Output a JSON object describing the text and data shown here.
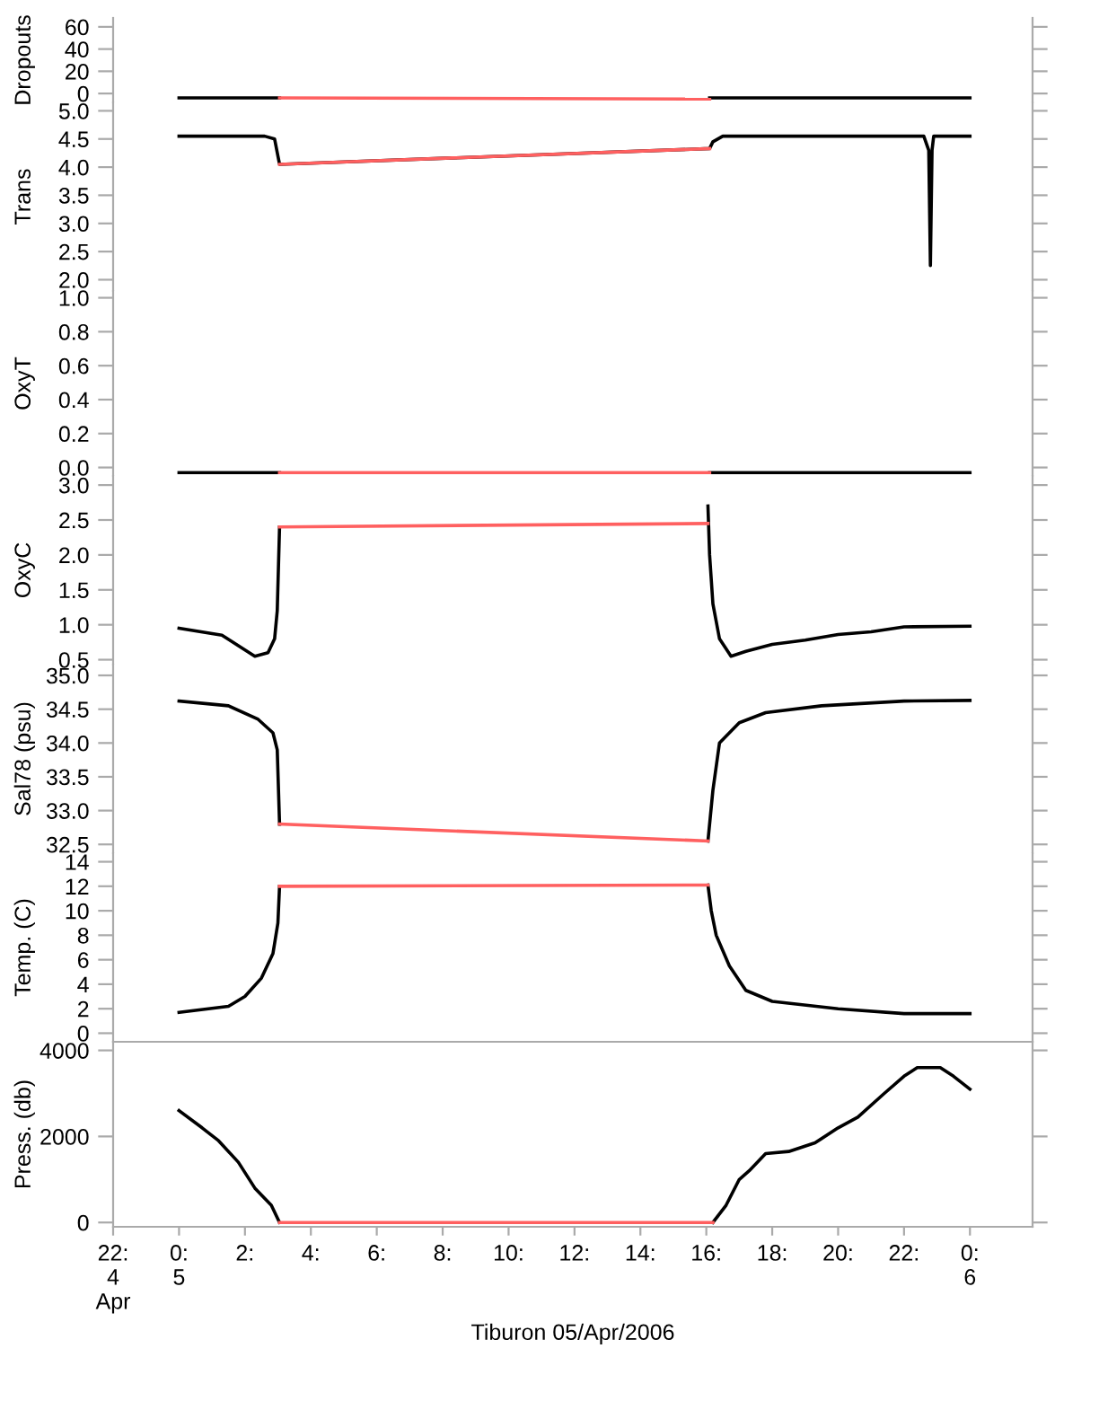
{
  "chart_data": [
    {
      "type": "line",
      "ylabel": "Dropouts",
      "xlim": [
        -2,
        25.9
      ],
      "ylim": [
        -8,
        68
      ],
      "yticks": [
        0,
        20,
        40,
        60
      ],
      "tick_labels": "y",
      "series": [
        {
          "color": "#000000",
          "x": [
            0,
            3.05,
            null,
            16.1,
            24
          ],
          "values": [
            -4,
            -4,
            null,
            -4,
            -4
          ]
        },
        {
          "color": "#ff6060",
          "x": [
            3.05,
            16.1
          ],
          "values": [
            -4,
            -5
          ]
        }
      ]
    },
    {
      "type": "line",
      "ylabel": "Trans",
      "xlim": [
        -2,
        25.9
      ],
      "ylim": [
        1.8,
        5.15
      ],
      "yticks": [
        {
          "value": 2.0,
          "label": "2.0"
        },
        2.5,
        {
          "value": 3.0,
          "label": "3.0"
        },
        3.5,
        {
          "value": 4.0,
          "label": "4.0"
        },
        4.5,
        {
          "value": 5.0,
          "label": "5.0"
        }
      ],
      "tick_labels": "y",
      "series": [
        {
          "color": "#000000",
          "x": [
            0,
            2.6,
            2.9,
            3.0,
            3.05,
            16.1,
            16.2,
            16.5,
            22.6,
            22.75,
            22.8,
            22.85,
            22.9,
            24
          ],
          "values": [
            4.55,
            4.55,
            4.5,
            4.2,
            4.05,
            4.33,
            4.45,
            4.55,
            4.55,
            4.3,
            2.25,
            4.3,
            4.55,
            4.55
          ]
        },
        {
          "color": "#ff6060",
          "x": [
            3.05,
            16.1
          ],
          "values": [
            4.05,
            4.33
          ]
        }
      ]
    },
    {
      "type": "line",
      "ylabel": "OxyT",
      "xlim": [
        -2,
        25.9
      ],
      "ylim": [
        -0.05,
        1.04
      ],
      "yticks": [
        {
          "value": 0,
          "label": "0.0"
        },
        0.2,
        0.4,
        0.6,
        0.8,
        {
          "value": 1,
          "label": "1.0"
        }
      ],
      "tick_labels": "y",
      "series": [
        {
          "color": "#000000",
          "x": [
            0,
            3.05,
            null,
            16.1,
            24
          ],
          "values": [
            -0.03,
            -0.03,
            null,
            -0.03,
            -0.03
          ]
        },
        {
          "color": "#ff6060",
          "x": [
            3.05,
            16.1
          ],
          "values": [
            -0.03,
            -0.03
          ]
        }
      ]
    },
    {
      "type": "line",
      "ylabel": "OxyC",
      "xlim": [
        -2,
        25.9
      ],
      "ylim": [
        0.43,
        3.13
      ],
      "yticks": [
        0.5,
        {
          "value": 1.0,
          "label": "1.0"
        },
        1.5,
        {
          "value": 2.0,
          "label": "2.0"
        },
        2.5,
        {
          "value": 3.0,
          "label": "3.0"
        }
      ],
      "tick_labels": "y",
      "series": [
        {
          "color": "#000000",
          "x": [
            0,
            1.3,
            2.3,
            2.7,
            2.9,
            2.98,
            3.05,
            null,
            16.05,
            16.1,
            16.2,
            16.4,
            16.75,
            17.2,
            18,
            19,
            20,
            21,
            22,
            24
          ],
          "values": [
            0.95,
            0.85,
            0.55,
            0.6,
            0.8,
            1.2,
            2.4,
            null,
            2.7,
            2.0,
            1.3,
            0.8,
            0.55,
            0.62,
            0.72,
            0.78,
            0.86,
            0.9,
            0.97,
            0.98
          ]
        },
        {
          "color": "#ff6060",
          "x": [
            3.05,
            16.05
          ],
          "values": [
            2.4,
            2.45
          ]
        }
      ]
    },
    {
      "type": "line",
      "ylabel": "Sal78 (psu)",
      "xlim": [
        -2,
        25.9
      ],
      "ylim": [
        32.37,
        35.16
      ],
      "yticks": [
        32.5,
        {
          "value": 33.0,
          "label": "33.0"
        },
        33.5,
        {
          "value": 34.0,
          "label": "34.0"
        },
        34.5,
        {
          "value": 35.0,
          "label": "35.0"
        }
      ],
      "tick_labels": "y",
      "series": [
        {
          "color": "#000000",
          "x": [
            0,
            1.5,
            2.4,
            2.85,
            2.98,
            3.05,
            null,
            16.05,
            16.2,
            16.4,
            17,
            17.8,
            19.5,
            22,
            24
          ],
          "values": [
            34.62,
            34.55,
            34.35,
            34.15,
            33.9,
            32.8,
            null,
            32.55,
            33.3,
            34.0,
            34.3,
            34.45,
            34.55,
            34.62,
            34.63
          ]
        },
        {
          "color": "#ff6060",
          "x": [
            3.05,
            16.05
          ],
          "values": [
            32.8,
            32.55
          ]
        }
      ]
    },
    {
      "type": "line",
      "ylabel": "Temp. (C)",
      "xlim": [
        -2,
        25.9
      ],
      "ylim": [
        -0.7,
        14.7
      ],
      "yticks": [
        0,
        2,
        4,
        6,
        8,
        10,
        12,
        14
      ],
      "tick_labels": "y",
      "series": [
        {
          "color": "#000000",
          "x": [
            0,
            1.5,
            2.0,
            2.5,
            2.85,
            3.0,
            3.05,
            null,
            16.05,
            16.15,
            16.3,
            16.7,
            17.2,
            18,
            20,
            22,
            24
          ],
          "values": [
            1.7,
            2.2,
            3.0,
            4.5,
            6.5,
            9,
            12,
            null,
            12.1,
            10,
            8,
            5.5,
            3.5,
            2.6,
            2.0,
            1.6,
            1.6
          ]
        },
        {
          "color": "#ff6060",
          "x": [
            3.05,
            16.05
          ],
          "values": [
            12,
            12.1
          ]
        }
      ]
    },
    {
      "type": "line",
      "ylabel": "Press. (db)",
      "xlabel": "Tiburon 05/Apr/2006",
      "xlim": [
        -2,
        25.9
      ],
      "ylim": [
        -100,
        4200
      ],
      "yticks": [
        0,
        2000,
        4000
      ],
      "xticks": [
        {
          "value": -2,
          "label": "22:\n4\nApr"
        },
        {
          "value": 0,
          "label": "0:\n5"
        },
        {
          "value": 2,
          "label": "2:"
        },
        {
          "value": 4,
          "label": "4:"
        },
        {
          "value": 6,
          "label": "6:"
        },
        {
          "value": 8,
          "label": "8:"
        },
        {
          "value": 10,
          "label": "10:"
        },
        {
          "value": 12,
          "label": "12:"
        },
        {
          "value": 14,
          "label": "14:"
        },
        {
          "value": 16,
          "label": "16:"
        },
        {
          "value": 18,
          "label": "18:"
        },
        {
          "value": 20,
          "label": "20:"
        },
        {
          "value": 22,
          "label": "22:"
        },
        {
          "value": 24,
          "label": "0:\n6"
        }
      ],
      "series": [
        {
          "color": "#000000",
          "x": [
            0,
            0.7,
            1.2,
            1.8,
            2.3,
            2.8,
            3.05,
            null,
            16.2,
            16.6,
            17.0,
            17.3,
            17.8,
            18.5,
            19.3,
            20.0,
            20.6,
            21.4,
            22.0,
            22.4,
            23.1,
            23.5,
            24.0
          ],
          "values": [
            2600,
            2200,
            1900,
            1400,
            800,
            400,
            0,
            null,
            0,
            400,
            1000,
            1200,
            1600,
            1650,
            1850,
            2200,
            2450,
            3000,
            3400,
            3600,
            3600,
            3400,
            3100
          ]
        },
        {
          "color": "#ff6060",
          "x": [
            3.05,
            16.2
          ],
          "values": [
            0,
            0
          ]
        }
      ]
    }
  ]
}
